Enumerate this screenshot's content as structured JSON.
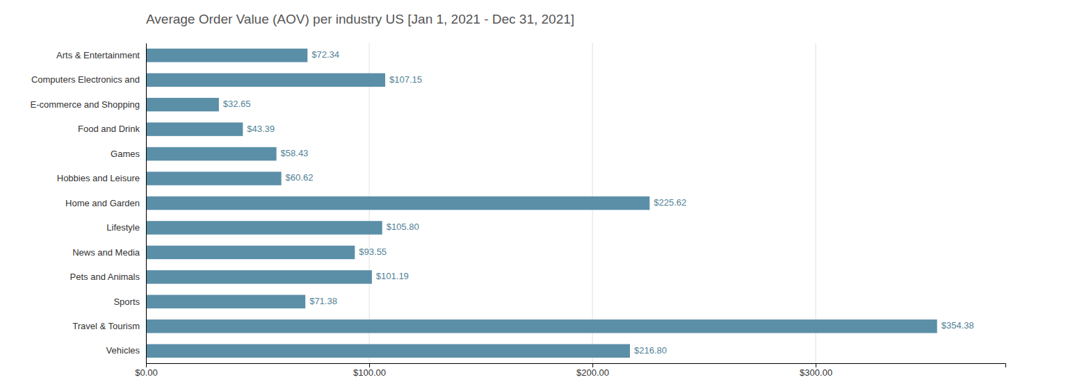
{
  "chart_data": {
    "type": "bar",
    "orientation": "horizontal",
    "title": "Average Order Value (AOV) per industry US [Jan 1, 2021 - Dec 31, 2021]",
    "categories": [
      "Arts & Entertainment",
      "Computers Electronics and",
      "E-commerce and Shopping",
      "Food and Drink",
      "Games",
      "Hobbies and Leisure",
      "Home and Garden",
      "Lifestyle",
      "News and Media",
      "Pets and Animals",
      "Sports",
      "Travel & Tourism",
      "Vehicles"
    ],
    "values": [
      72.34,
      107.15,
      32.65,
      43.39,
      58.43,
      60.62,
      225.62,
      105.8,
      93.55,
      101.19,
      71.38,
      354.38,
      216.8
    ],
    "value_labels": [
      "$72.34",
      "$107.15",
      "$32.65",
      "$43.39",
      "$58.43",
      "$60.62",
      "$225.62",
      "$105.80",
      "$93.55",
      "$101.19",
      "$71.38",
      "$354.38",
      "$216.80"
    ],
    "color": "#5b8fa8",
    "xlim": [
      0,
      385
    ],
    "xticks": [
      {
        "value": 0,
        "label": "$0.00"
      },
      {
        "value": 100,
        "label": "$100.00"
      },
      {
        "value": 200,
        "label": "$200.00"
      },
      {
        "value": 300,
        "label": "$300.00"
      }
    ],
    "grid": true,
    "data_labels": true
  }
}
